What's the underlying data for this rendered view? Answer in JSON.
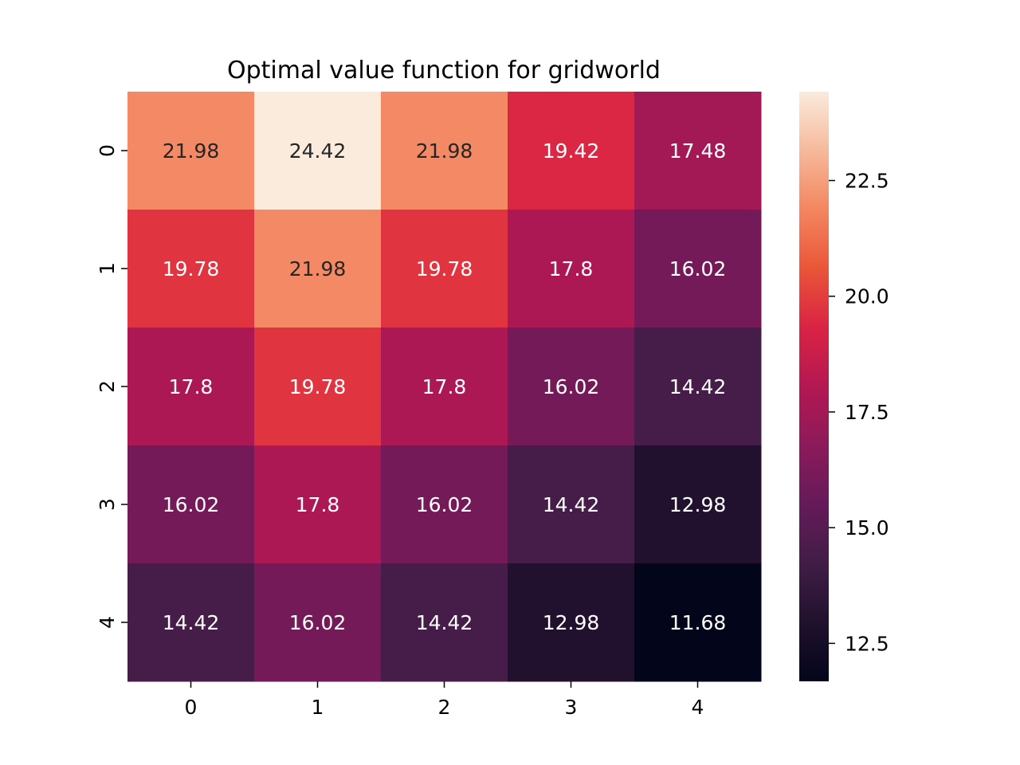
{
  "chart_data": {
    "type": "heatmap",
    "title": "Optimal value function for gridworld",
    "xlabel": "",
    "ylabel": "",
    "x_categories": [
      "0",
      "1",
      "2",
      "3",
      "4"
    ],
    "y_categories": [
      "0",
      "1",
      "2",
      "3",
      "4"
    ],
    "values": [
      [
        21.98,
        24.42,
        21.98,
        19.42,
        17.48
      ],
      [
        19.78,
        21.98,
        19.78,
        17.8,
        16.02
      ],
      [
        17.8,
        19.78,
        17.8,
        16.02,
        14.42
      ],
      [
        16.02,
        17.8,
        16.02,
        14.42,
        12.98
      ],
      [
        14.42,
        16.02,
        14.42,
        12.98,
        11.68
      ]
    ],
    "annotations": [
      [
        "21.98",
        "24.42",
        "21.98",
        "19.42",
        "17.48"
      ],
      [
        "19.78",
        "21.98",
        "19.78",
        "17.8",
        "16.02"
      ],
      [
        "17.8",
        "19.78",
        "17.8",
        "16.02",
        "14.42"
      ],
      [
        "16.02",
        "17.8",
        "16.02",
        "14.42",
        "12.98"
      ],
      [
        "14.42",
        "16.02",
        "14.42",
        "12.98",
        "11.68"
      ]
    ],
    "colormap": "rocket",
    "colorbar": {
      "range": [
        11.68,
        24.42
      ],
      "ticks": [
        12.5,
        15.0,
        17.5,
        20.0,
        22.5
      ],
      "tick_labels": [
        "12.5",
        "15.0",
        "17.5",
        "20.0",
        "22.5"
      ],
      "position": "right"
    },
    "colors": {
      "light_text": "#ffffff",
      "dark_text": "#262626",
      "axis": "#000000"
    },
    "grid": false
  }
}
